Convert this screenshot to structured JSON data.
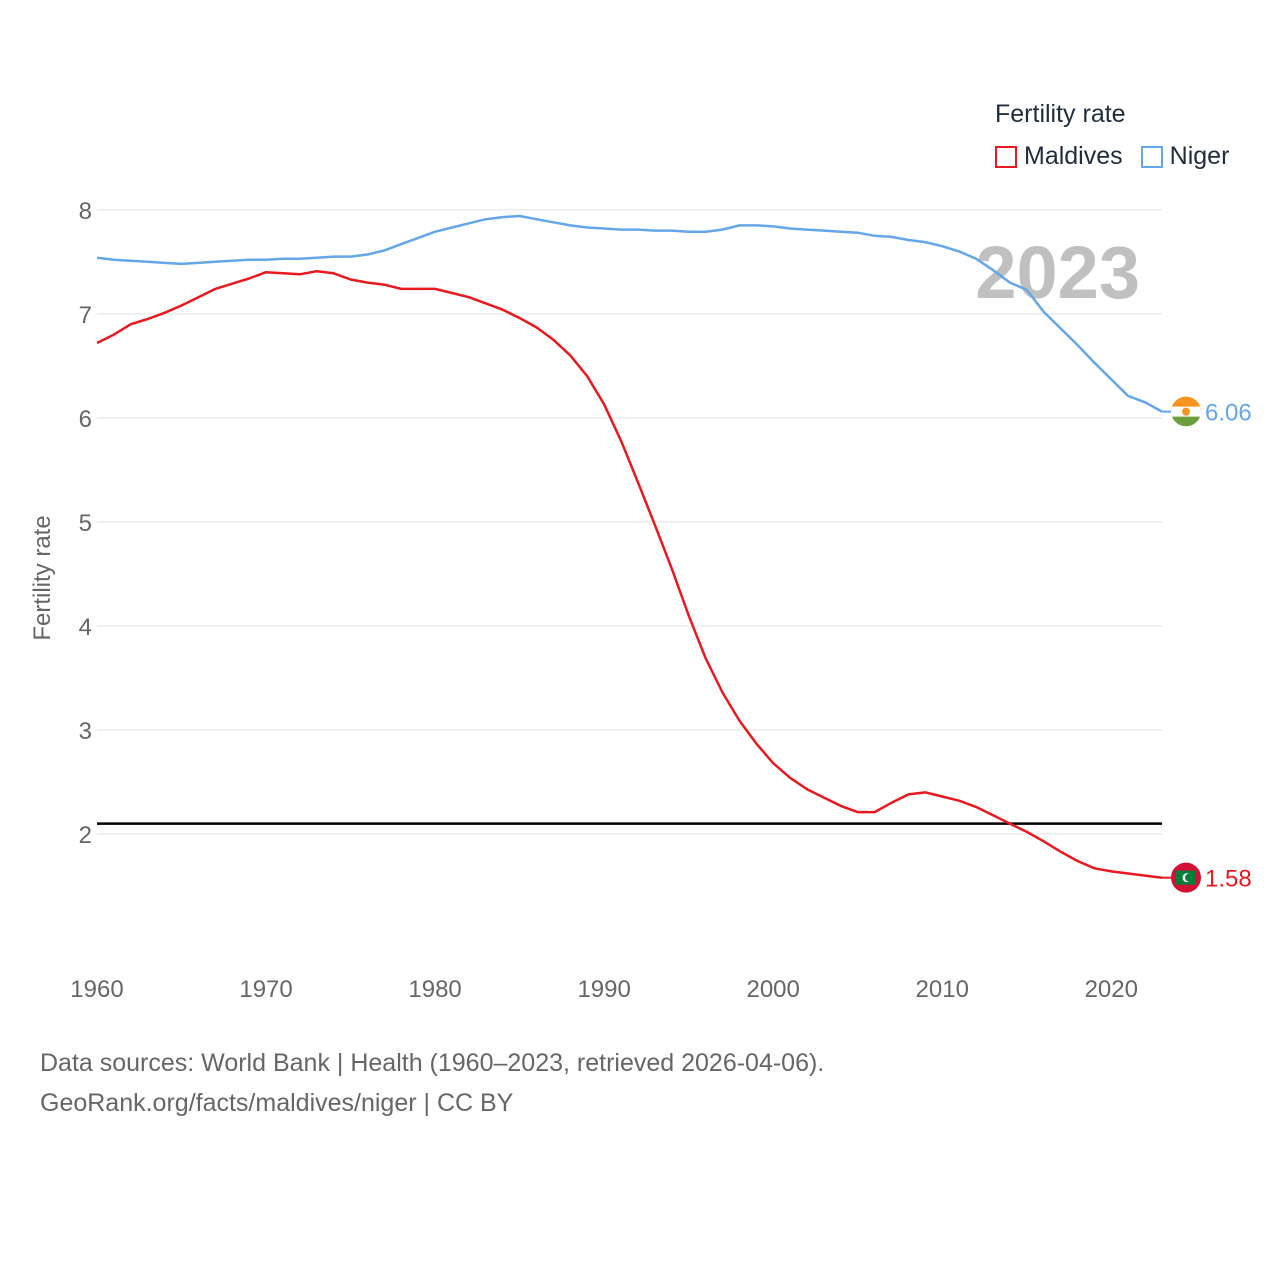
{
  "chart_data": {
    "type": "line",
    "xlabel": "",
    "ylabel": "Fertility rate",
    "xlim": [
      1960,
      2023
    ],
    "ylim": [
      1,
      8.2
    ],
    "x_ticks": [
      1960,
      1970,
      1980,
      1990,
      2000,
      2010,
      2020
    ],
    "y_ticks": [
      2,
      3,
      4,
      5,
      6,
      7,
      8
    ],
    "year_label": "2023",
    "reference_line": {
      "y": 2.1
    },
    "legend": {
      "title": "Fertility rate",
      "position": "top-right"
    },
    "colors": {
      "Maldives": "#e8191f",
      "Niger": "#64a7e8",
      "grid": "#e6e6e6",
      "axis_text": "#666666",
      "year_label": "#c0c0c0",
      "reference": "#000000"
    },
    "x": [
      1960,
      1961,
      1962,
      1963,
      1964,
      1965,
      1966,
      1967,
      1968,
      1969,
      1970,
      1971,
      1972,
      1973,
      1974,
      1975,
      1976,
      1977,
      1978,
      1979,
      1980,
      1981,
      1982,
      1983,
      1984,
      1985,
      1986,
      1987,
      1988,
      1989,
      1990,
      1991,
      1992,
      1993,
      1994,
      1995,
      1996,
      1997,
      1998,
      1999,
      2000,
      2001,
      2002,
      2003,
      2004,
      2005,
      2006,
      2007,
      2008,
      2009,
      2010,
      2011,
      2012,
      2013,
      2014,
      2015,
      2016,
      2017,
      2018,
      2019,
      2020,
      2021,
      2022,
      2023
    ],
    "series": [
      {
        "name": "Maldives",
        "end_label": "1.58",
        "values": [
          6.72,
          6.8,
          6.9,
          6.95,
          7.01,
          7.08,
          7.16,
          7.24,
          7.29,
          7.34,
          7.4,
          7.39,
          7.38,
          7.41,
          7.39,
          7.33,
          7.3,
          7.28,
          7.24,
          7.24,
          7.24,
          7.2,
          7.16,
          7.1,
          7.04,
          6.96,
          6.87,
          6.75,
          6.6,
          6.4,
          6.13,
          5.78,
          5.38,
          4.97,
          4.55,
          4.1,
          3.69,
          3.36,
          3.09,
          2.87,
          2.68,
          2.54,
          2.43,
          2.35,
          2.27,
          2.21,
          2.21,
          2.3,
          2.38,
          2.4,
          2.36,
          2.32,
          2.26,
          2.18,
          2.1,
          2.02,
          1.93,
          1.83,
          1.74,
          1.67,
          1.64,
          1.62,
          1.6,
          1.58
        ]
      },
      {
        "name": "Niger",
        "end_label": "6.06",
        "values": [
          7.54,
          7.52,
          7.51,
          7.5,
          7.49,
          7.48,
          7.49,
          7.5,
          7.51,
          7.52,
          7.52,
          7.53,
          7.53,
          7.54,
          7.55,
          7.55,
          7.57,
          7.61,
          7.67,
          7.73,
          7.79,
          7.83,
          7.87,
          7.91,
          7.93,
          7.94,
          7.91,
          7.88,
          7.85,
          7.83,
          7.82,
          7.81,
          7.81,
          7.8,
          7.8,
          7.79,
          7.79,
          7.81,
          7.85,
          7.85,
          7.84,
          7.82,
          7.81,
          7.8,
          7.79,
          7.78,
          7.75,
          7.74,
          7.71,
          7.69,
          7.65,
          7.6,
          7.53,
          7.42,
          7.3,
          7.23,
          7.02,
          6.86,
          6.7,
          6.53,
          6.37,
          6.21,
          6.15,
          6.06
        ]
      }
    ]
  },
  "footer": {
    "line1": "Data sources: World Bank | Health (1960–2023, retrieved 2026-04-06).",
    "line2": "GeoRank.org/facts/maldives/niger | CC BY"
  }
}
